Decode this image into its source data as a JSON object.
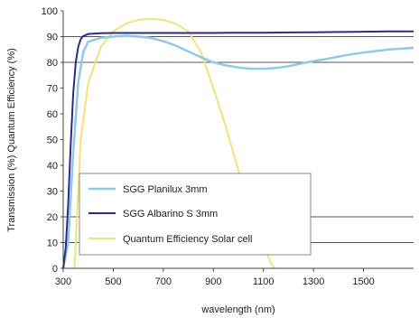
{
  "chart_data": {
    "type": "line",
    "xlabel": "wavelength (nm)",
    "ylabel": "Transmission (%) Quantum Efficiency (%)",
    "xlim": [
      300,
      1700
    ],
    "ylim": [
      0,
      100
    ],
    "x_ticks": [
      "300",
      "500",
      "700",
      "900",
      "1100",
      "1300",
      "1500"
    ],
    "x_tick_values": [
      300,
      500,
      700,
      900,
      1100,
      1300,
      1500
    ],
    "y_ticks": [
      "0",
      "10",
      "20",
      "30",
      "40",
      "50",
      "60",
      "70",
      "80",
      "90",
      "100"
    ],
    "y_tick_values": [
      0,
      10,
      20,
      30,
      40,
      50,
      60,
      70,
      80,
      90,
      100
    ],
    "gridlines_y": [
      10,
      20,
      80,
      90
    ],
    "legend_position": "lower-left",
    "series": [
      {
        "name": "SGG Planilux 3mm",
        "color": "#8ec9e6",
        "x": [
          300,
          320,
          340,
          360,
          380,
          400,
          450,
          500,
          550,
          600,
          650,
          700,
          750,
          800,
          850,
          900,
          950,
          1000,
          1050,
          1100,
          1150,
          1200,
          1250,
          1300,
          1350,
          1400,
          1450,
          1500,
          1550,
          1600,
          1650,
          1700
        ],
        "y": [
          0,
          10,
          45,
          72,
          84,
          88,
          89.5,
          90,
          90.3,
          90,
          89.5,
          88.2,
          86.5,
          84.2,
          82,
          80,
          78.8,
          78,
          77.5,
          77.5,
          77.8,
          78.5,
          79.5,
          80.5,
          81.3,
          82.2,
          83.1,
          83.8,
          84.4,
          85,
          85.3,
          85.6
        ]
      },
      {
        "name": "SGG Albarino S 3mm",
        "color": "#2b2b8a",
        "x": [
          300,
          310,
          320,
          330,
          340,
          350,
          360,
          370,
          380,
          400,
          450,
          500,
          600,
          700,
          800,
          900,
          1000,
          1100,
          1200,
          1300,
          1400,
          1500,
          1600,
          1700
        ],
        "y": [
          0,
          8,
          25,
          48,
          68,
          80,
          86,
          89,
          90.2,
          91,
          91.3,
          91.4,
          91.4,
          91.4,
          91.4,
          91.4,
          91.5,
          91.5,
          91.6,
          91.7,
          91.8,
          91.9,
          92,
          92
        ]
      },
      {
        "name": "Quantum Efficiency Solar cell",
        "color": "#f2e27a",
        "x": [
          345,
          370,
          400,
          450,
          500,
          550,
          600,
          650,
          700,
          750,
          800,
          850,
          900,
          950,
          1000,
          1050,
          1100,
          1130,
          1145
        ],
        "y": [
          0,
          50,
          72,
          86,
          92,
          95,
          96.5,
          97,
          96.5,
          95,
          92,
          84,
          70,
          55,
          38,
          22,
          9,
          2,
          0
        ]
      }
    ]
  }
}
